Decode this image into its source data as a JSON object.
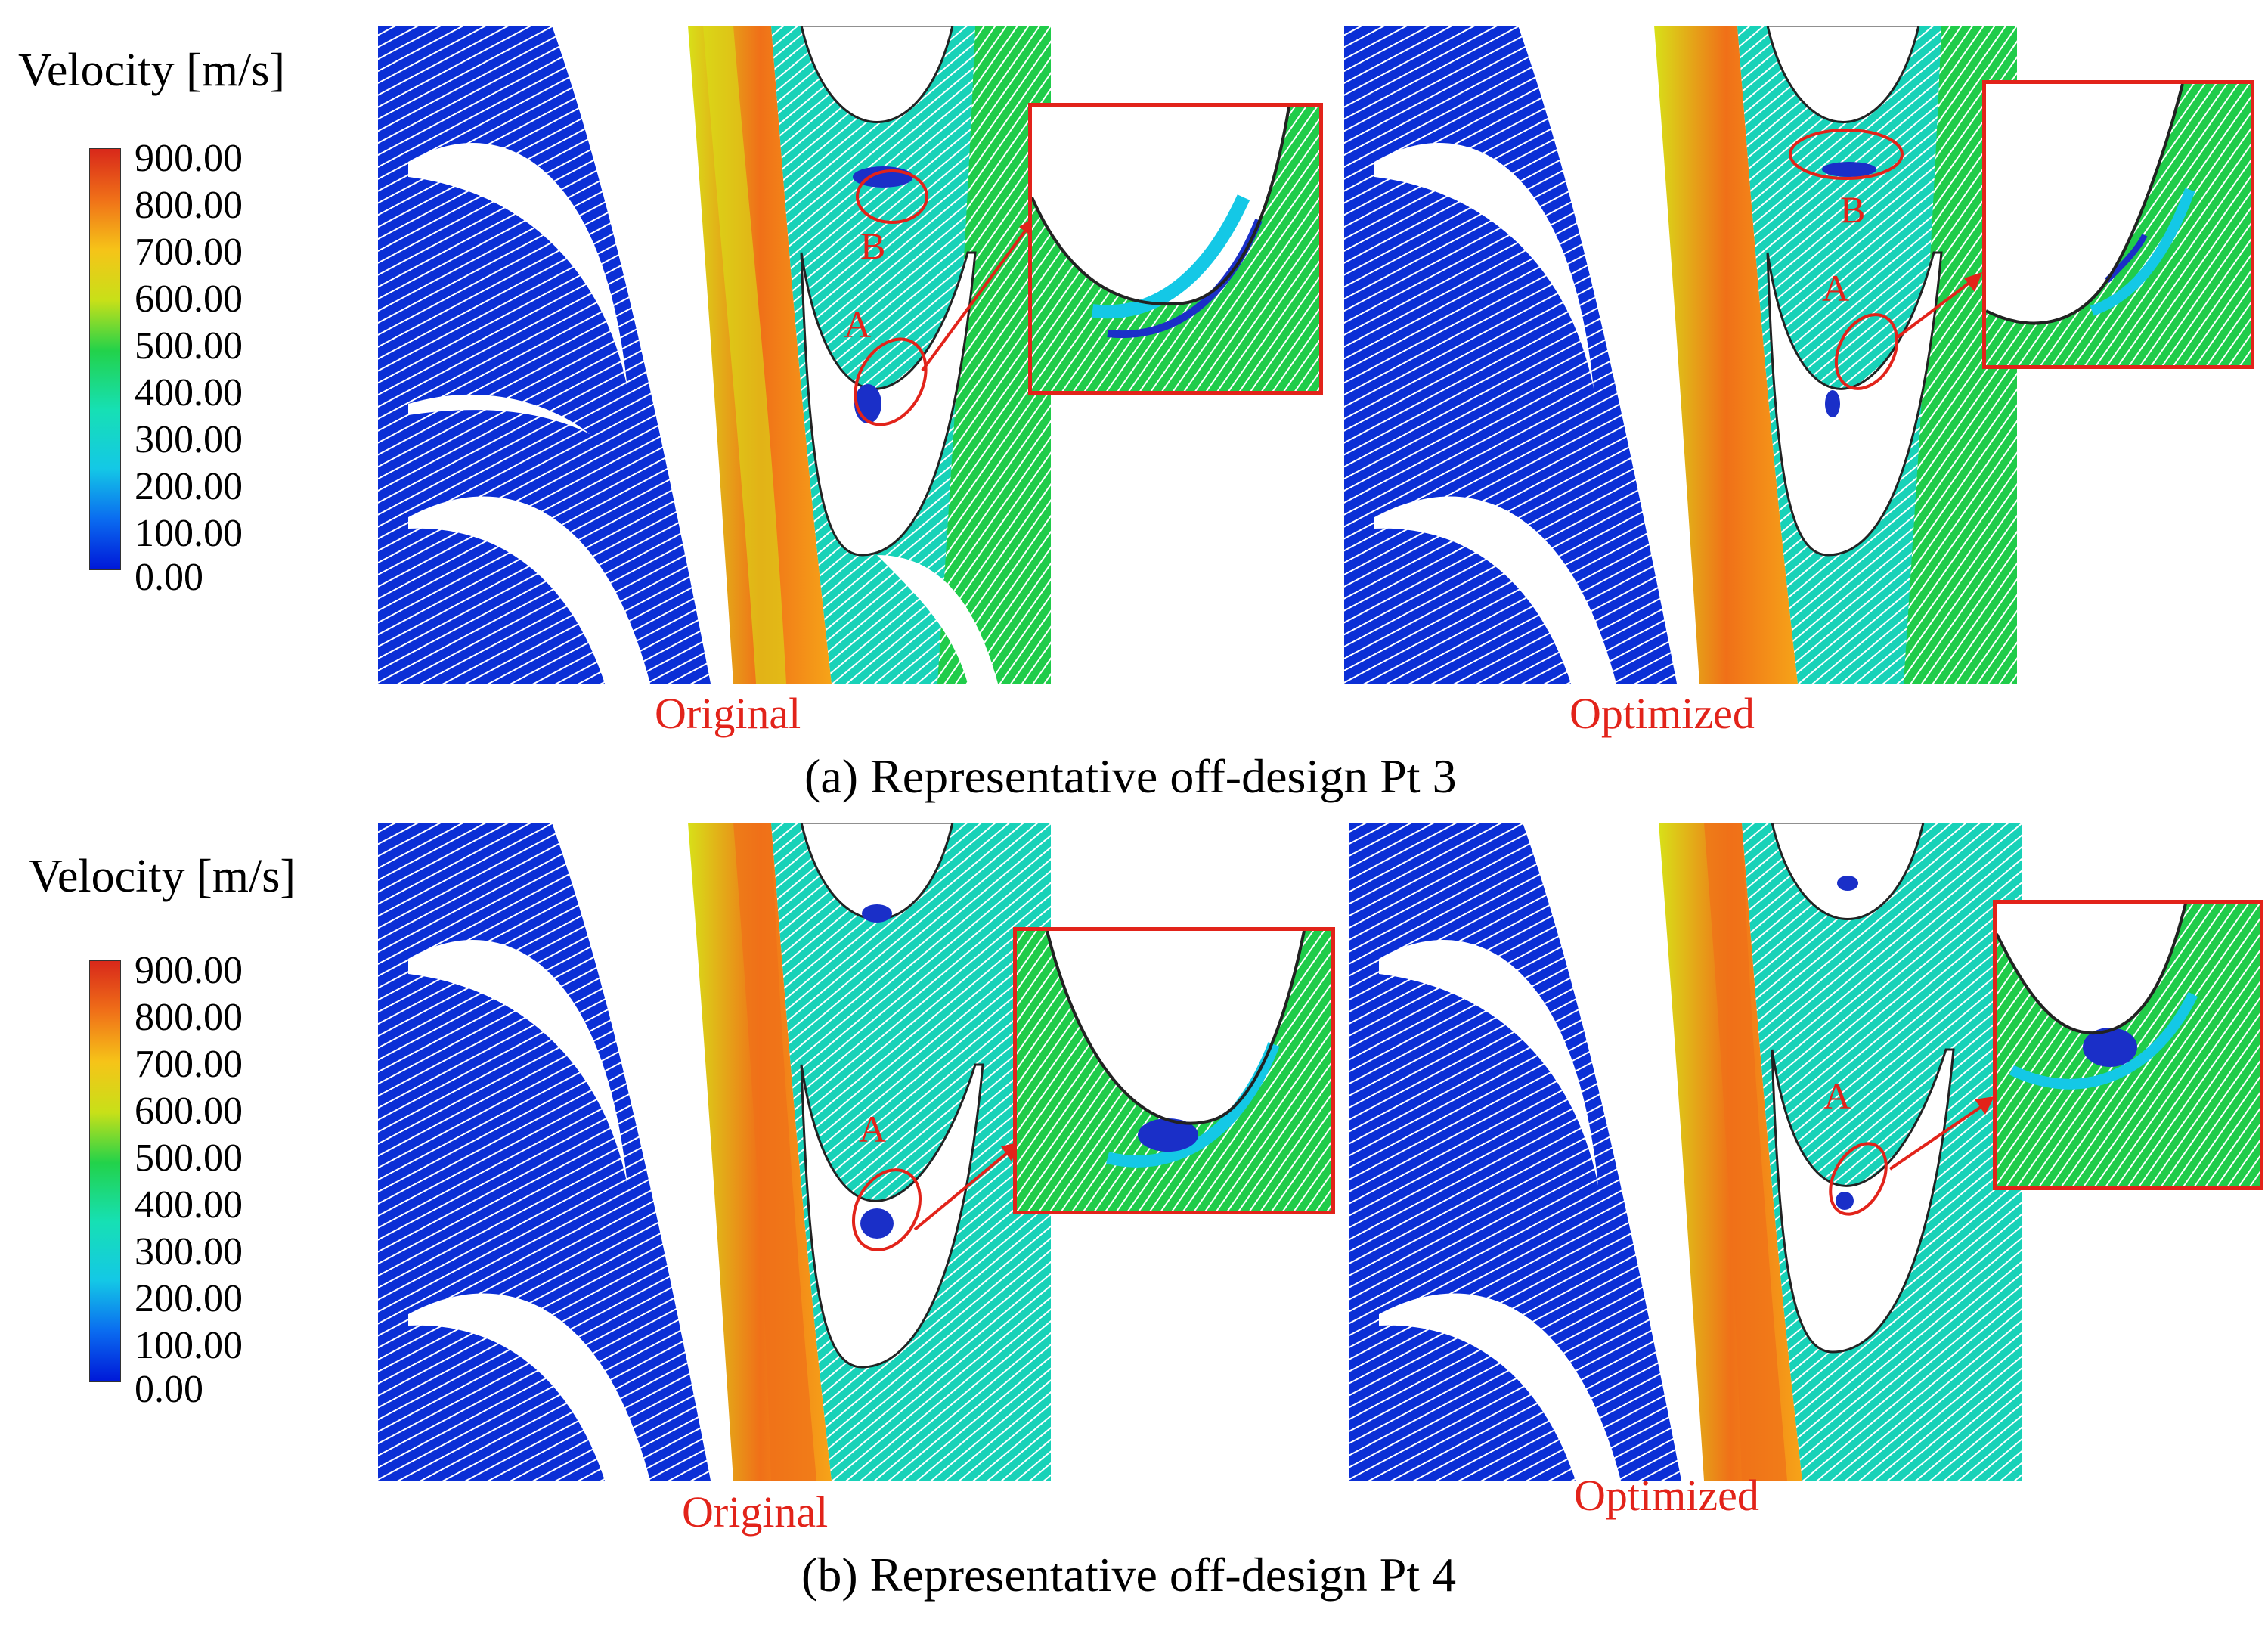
{
  "figure": {
    "row_a": {
      "caption": "(a) Representative off-design Pt 3",
      "legend": {
        "title": "Velocity [m/s]",
        "ticks": [
          "900.00",
          "800.00",
          "700.00",
          "600.00",
          "500.00",
          "400.00",
          "300.00",
          "200.00",
          "100.00",
          "0.00"
        ]
      },
      "left_label": "Original",
      "right_label": "Optimized",
      "markers": {
        "a": "A",
        "b": "B"
      }
    },
    "row_b": {
      "caption": "(b) Representative off-design Pt 4",
      "legend": {
        "title": "Velocity [m/s]",
        "ticks": [
          "900.00",
          "800.00",
          "700.00",
          "600.00",
          "500.00",
          "400.00",
          "300.00",
          "200.00",
          "100.00",
          "0.00"
        ]
      },
      "left_label": "Original",
      "right_label": "Optimized",
      "markers": {
        "a": "A"
      }
    },
    "colormap": [
      "#0018d8",
      "#0a5cf0",
      "#14c8e6",
      "#16e0b4",
      "#22d24a",
      "#7ad420",
      "#d8e018",
      "#f6a418",
      "#f07018",
      "#d8281a"
    ],
    "colors": {
      "annotation": "#e2231a",
      "low_velocity": "#1a2fc8",
      "blade_outline": "#222222"
    }
  }
}
